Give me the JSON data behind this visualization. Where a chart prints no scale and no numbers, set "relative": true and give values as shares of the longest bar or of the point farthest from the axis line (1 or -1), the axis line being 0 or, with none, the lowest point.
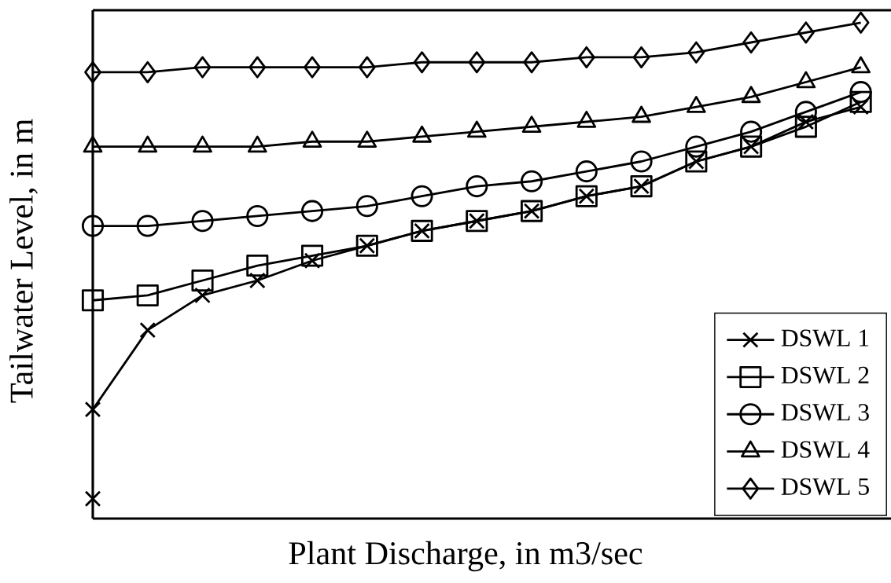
{
  "chart_data": {
    "type": "line",
    "relative": true,
    "xlabel": "Plant Discharge, in m3/sec",
    "ylabel": "Tailwater Level, in m",
    "legend": "bottom right",
    "categories": [
      null,
      null,
      null,
      null,
      null,
      null,
      null,
      null,
      null,
      null,
      null,
      null,
      null,
      null,
      null
    ],
    "series": [
      {
        "name": "DSWL 1",
        "color": "#000000",
        "marker": "cross",
        "values": [
          0.22,
          0.38,
          0.45,
          0.48,
          0.52,
          0.55,
          0.58,
          0.6,
          0.62,
          0.65,
          0.67,
          0.72,
          0.75,
          0.8,
          0.83
        ]
      },
      {
        "color": "#000000",
        "marker": "cross",
        "values": [
          0.04,
          null,
          null,
          null,
          null,
          null,
          null,
          null,
          null,
          null,
          null,
          null,
          null,
          null,
          null
        ]
      },
      {
        "name": "DSWL 2",
        "color": "#000000",
        "marker": "square",
        "values": [
          0.44,
          0.45,
          0.48,
          0.51,
          0.53,
          0.55,
          0.58,
          0.6,
          0.62,
          0.65,
          0.67,
          0.72,
          0.75,
          0.79,
          0.84
        ]
      },
      {
        "name": "DSWL 3",
        "color": "#000000",
        "marker": "circle",
        "values": [
          0.59,
          0.59,
          0.6,
          0.61,
          0.62,
          0.63,
          0.65,
          0.67,
          0.68,
          0.7,
          0.72,
          0.75,
          0.78,
          0.82,
          0.86
        ]
      },
      {
        "name": "DSWL 4",
        "color": "#000000",
        "marker": "triangle",
        "values": [
          0.75,
          0.75,
          0.75,
          0.75,
          0.76,
          0.76,
          0.77,
          0.78,
          0.79,
          0.8,
          0.81,
          0.83,
          0.85,
          0.88,
          0.91
        ]
      },
      {
        "name": "DSWL 5",
        "color": "#000000",
        "marker": "diamond",
        "values": [
          0.9,
          0.9,
          0.91,
          0.91,
          0.91,
          0.91,
          0.92,
          0.92,
          0.92,
          0.93,
          0.93,
          0.94,
          0.96,
          0.98,
          1.0
        ]
      }
    ]
  }
}
